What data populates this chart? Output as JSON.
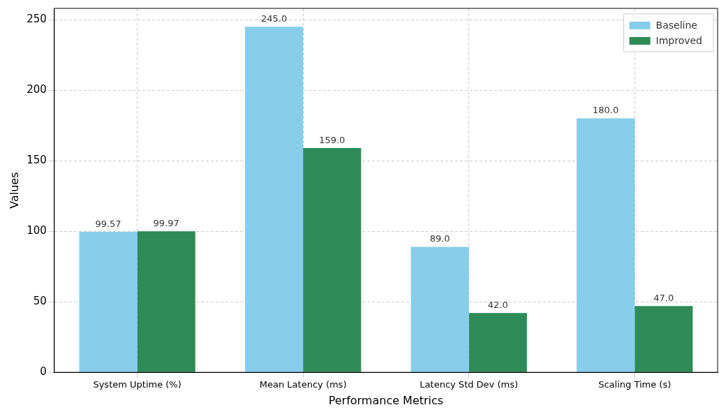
{
  "chart_data": {
    "type": "bar",
    "xlabel": "Performance Metrics",
    "ylabel": "Values",
    "categories": [
      "System Uptime (%)",
      "Mean Latency (ms)",
      "Latency Std Dev (ms)",
      "Scaling Time (s)"
    ],
    "series": [
      {
        "name": "Baseline",
        "color": "#87ceeb",
        "values": [
          99.57,
          245,
          89,
          180
        ],
        "value_labels": [
          "99.57",
          "245.0",
          "89.0",
          "180.0"
        ]
      },
      {
        "name": "Improved",
        "color": "#2e8b57",
        "values": [
          99.97,
          159,
          42,
          47
        ],
        "value_labels": [
          "99.97",
          "159.0",
          "42.0",
          "47.0"
        ]
      }
    ],
    "ylim": [
      0,
      258
    ],
    "yticks": [
      0,
      50,
      100,
      150,
      200,
      250
    ],
    "grid": true,
    "legend": "top right"
  }
}
